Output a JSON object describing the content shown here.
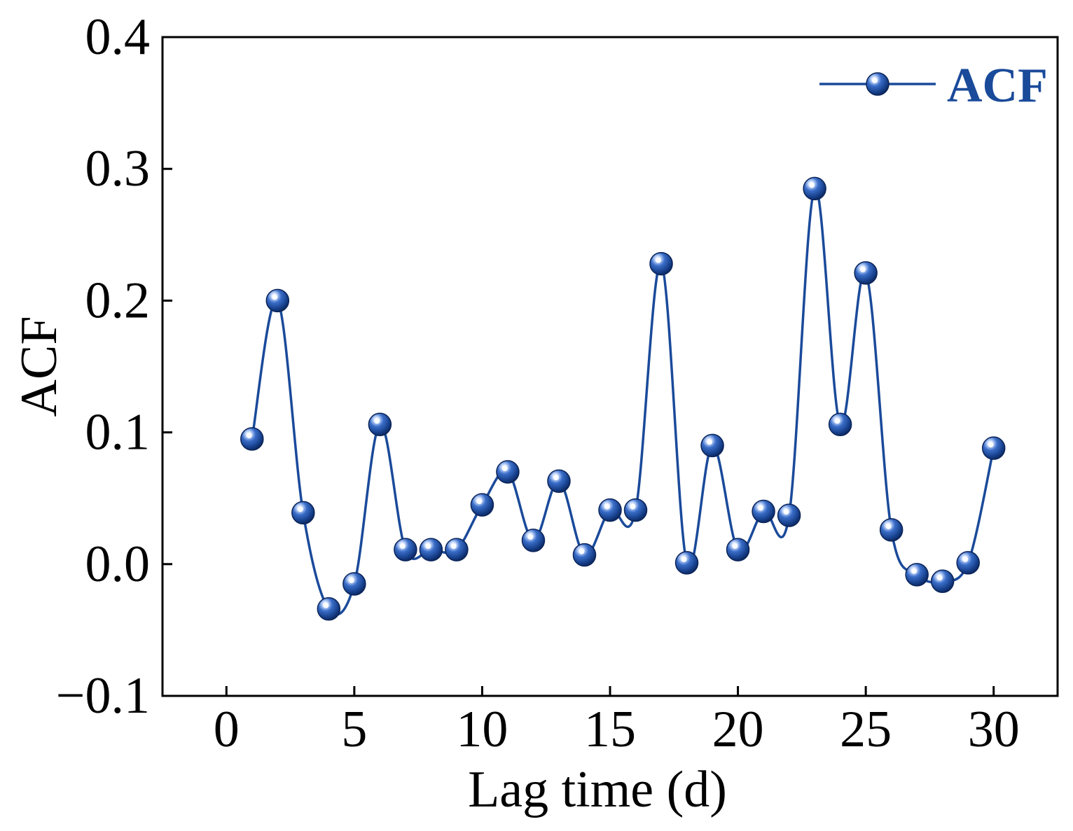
{
  "chart_data": {
    "type": "line",
    "title": "",
    "xlabel": "Lag time (d)",
    "ylabel": "ACF",
    "xlim": [
      -2.5,
      32.5
    ],
    "ylim": [
      -0.1,
      0.4
    ],
    "xticks": [
      0,
      5,
      10,
      15,
      20,
      25,
      30
    ],
    "xtick_labels": [
      "0",
      "5",
      "10",
      "15",
      "20",
      "25",
      "30"
    ],
    "yticks": [
      -0.1,
      0.0,
      0.1,
      0.2,
      0.3,
      0.4
    ],
    "ytick_labels": [
      "−0.1",
      "0.0",
      "0.1",
      "0.2",
      "0.3",
      "0.4"
    ],
    "grid": false,
    "legend_position": "top-right",
    "smooth": true,
    "series": [
      {
        "name": "ACF",
        "color": "#1a4a9a",
        "marker": "sphere",
        "x": [
          1,
          2,
          3,
          4,
          5,
          6,
          7,
          8,
          9,
          10,
          11,
          12,
          13,
          14,
          15,
          16,
          17,
          18,
          19,
          20,
          21,
          22,
          23,
          24,
          25,
          26,
          27,
          28,
          29,
          30
        ],
        "values": [
          0.095,
          0.2,
          0.039,
          -0.034,
          -0.015,
          0.106,
          0.011,
          0.011,
          0.011,
          0.045,
          0.07,
          0.018,
          0.063,
          0.007,
          0.041,
          0.041,
          0.228,
          0.001,
          0.09,
          0.011,
          0.04,
          0.037,
          0.285,
          0.106,
          0.221,
          0.026,
          -0.008,
          -0.013,
          0.001,
          0.088
        ]
      }
    ]
  }
}
